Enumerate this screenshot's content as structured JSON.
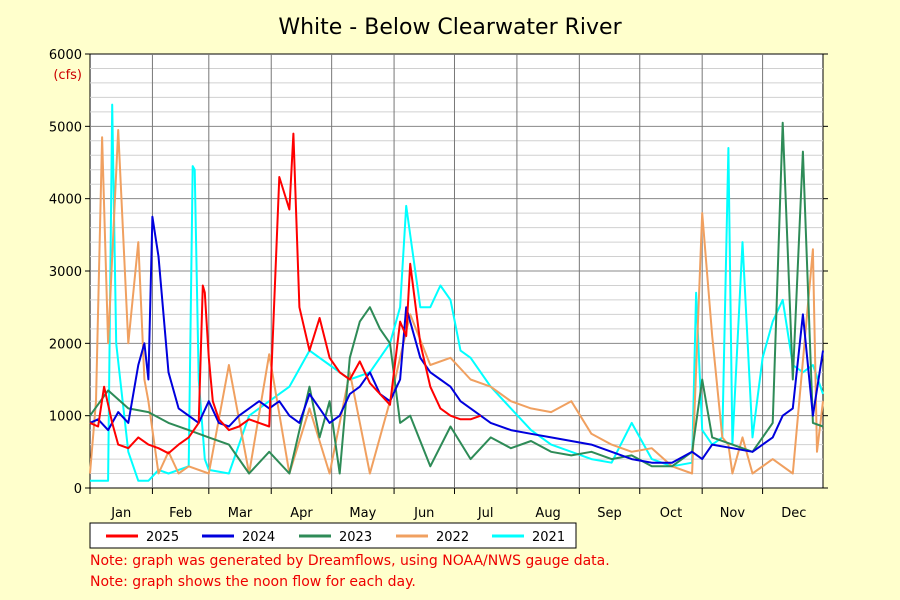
{
  "chart_data": {
    "type": "line",
    "title": "White - Below Clearwater River",
    "ylabel": "(cfs)",
    "xlabel": "",
    "ylim": [
      0,
      6000
    ],
    "yticks": [
      0,
      1000,
      2000,
      3000,
      4000,
      5000,
      6000
    ],
    "x_unit": "day of year",
    "xlim": [
      1,
      365
    ],
    "month_ticks": [
      "Jan",
      "Feb",
      "Mar",
      "Apr",
      "May",
      "Jun",
      "Jul",
      "Aug",
      "Sep",
      "Oct",
      "Nov",
      "Dec"
    ],
    "grid": true,
    "legend_position": "bottom",
    "series": [
      {
        "name": "2025",
        "color": "#ff0000",
        "x": [
          1,
          5,
          8,
          12,
          15,
          20,
          25,
          30,
          35,
          40,
          45,
          50,
          55,
          57,
          58,
          60,
          62,
          65,
          70,
          75,
          80,
          85,
          90,
          95,
          100,
          102,
          105,
          110,
          115,
          120,
          125,
          130,
          135,
          140,
          145,
          150,
          155,
          158,
          160,
          165,
          170,
          175,
          180,
          185,
          190,
          195
        ],
        "y": [
          900,
          850,
          1400,
          900,
          600,
          550,
          700,
          600,
          550,
          480,
          600,
          700,
          900,
          2800,
          2700,
          1800,
          1200,
          950,
          800,
          850,
          950,
          900,
          850,
          4300,
          3850,
          4900,
          2500,
          1900,
          2350,
          1800,
          1600,
          1500,
          1750,
          1450,
          1300,
          1150,
          2300,
          2100,
          3100,
          2000,
          1400,
          1100,
          1000,
          950,
          950,
          1000
        ]
      },
      {
        "name": "2024",
        "color": "#0000dd",
        "x": [
          1,
          5,
          10,
          15,
          20,
          25,
          28,
          30,
          32,
          35,
          40,
          45,
          50,
          55,
          60,
          65,
          70,
          75,
          80,
          85,
          90,
          95,
          100,
          105,
          110,
          115,
          120,
          125,
          130,
          135,
          140,
          145,
          150,
          155,
          158,
          160,
          165,
          170,
          175,
          180,
          185,
          190,
          195,
          200,
          210,
          220,
          230,
          240,
          250,
          260,
          270,
          280,
          290,
          300,
          305,
          310,
          320,
          330,
          340,
          345,
          350,
          355,
          360,
          365
        ],
        "y": [
          900,
          950,
          800,
          1050,
          900,
          1700,
          2000,
          1500,
          3750,
          3200,
          1600,
          1100,
          1000,
          900,
          1200,
          900,
          850,
          1000,
          1100,
          1200,
          1100,
          1200,
          1000,
          900,
          1300,
          1100,
          900,
          1000,
          1300,
          1400,
          1600,
          1300,
          1200,
          1500,
          2500,
          2300,
          1800,
          1600,
          1500,
          1400,
          1200,
          1100,
          1000,
          900,
          800,
          750,
          700,
          650,
          600,
          500,
          400,
          350,
          350,
          500,
          400,
          600,
          550,
          500,
          700,
          1000,
          1100,
          2400,
          1000,
          1900
        ]
      },
      {
        "name": "2023",
        "color": "#2e8b57",
        "x": [
          1,
          10,
          20,
          30,
          40,
          50,
          60,
          70,
          80,
          90,
          100,
          110,
          115,
          120,
          125,
          130,
          135,
          140,
          145,
          150,
          155,
          160,
          170,
          180,
          190,
          200,
          210,
          220,
          230,
          240,
          250,
          260,
          270,
          280,
          290,
          300,
          305,
          310,
          320,
          330,
          340,
          345,
          350,
          355,
          360,
          365
        ],
        "y": [
          1000,
          1350,
          1100,
          1050,
          900,
          800,
          700,
          600,
          200,
          500,
          200,
          1400,
          700,
          1200,
          200,
          1800,
          2300,
          2500,
          2200,
          2000,
          900,
          1000,
          300,
          850,
          400,
          700,
          550,
          650,
          500,
          450,
          500,
          400,
          450,
          300,
          300,
          500,
          1500,
          700,
          600,
          500,
          900,
          5050,
          1500,
          4650,
          900,
          850
        ]
      },
      {
        "name": "2022",
        "color": "#f0a060",
        "x": [
          1,
          4,
          7,
          10,
          15,
          20,
          25,
          28,
          30,
          35,
          40,
          45,
          50,
          60,
          70,
          80,
          90,
          100,
          110,
          120,
          130,
          140,
          150,
          160,
          170,
          180,
          190,
          200,
          210,
          220,
          230,
          240,
          250,
          260,
          270,
          280,
          290,
          300,
          305,
          310,
          315,
          318,
          320,
          325,
          330,
          340,
          350,
          360,
          362,
          365
        ],
        "y": [
          200,
          1200,
          4850,
          2000,
          4950,
          2000,
          3400,
          1500,
          1200,
          200,
          500,
          200,
          300,
          200,
          1700,
          200,
          1850,
          200,
          1100,
          200,
          1600,
          200,
          1200,
          2400,
          1700,
          1800,
          1500,
          1400,
          1200,
          1100,
          1050,
          1200,
          750,
          600,
          500,
          550,
          300,
          200,
          3800,
          2100,
          700,
          600,
          200,
          700,
          200,
          400,
          200,
          3300,
          500,
          1200
        ]
      },
      {
        "name": "2021",
        "color": "#00ffff",
        "x": [
          1,
          5,
          10,
          12,
          14,
          16,
          20,
          25,
          30,
          35,
          40,
          45,
          50,
          52,
          53,
          55,
          58,
          60,
          70,
          80,
          90,
          100,
          110,
          120,
          130,
          140,
          150,
          155,
          158,
          160,
          165,
          170,
          175,
          180,
          185,
          190,
          200,
          210,
          220,
          230,
          240,
          250,
          260,
          270,
          280,
          290,
          300,
          302,
          305,
          310,
          315,
          318,
          320,
          325,
          330,
          335,
          340,
          345,
          350,
          355,
          360,
          365
        ],
        "y": [
          100,
          100,
          100,
          5300,
          2000,
          1500,
          500,
          100,
          100,
          250,
          200,
          250,
          300,
          4450,
          4400,
          1500,
          400,
          250,
          200,
          1000,
          1200,
          1400,
          1900,
          1700,
          1500,
          1600,
          2000,
          2500,
          3900,
          3500,
          2500,
          2500,
          2800,
          2600,
          1900,
          1800,
          1400,
          1100,
          800,
          600,
          500,
          400,
          350,
          900,
          400,
          300,
          350,
          2700,
          800,
          600,
          700,
          4700,
          600,
          3400,
          700,
          1800,
          2300,
          2600,
          1700,
          1600,
          1700,
          1300
        ]
      }
    ]
  },
  "notes": [
    "Note: graph was generated by Dreamflows, using NOAA/NWS gauge data.",
    "Note: graph shows the noon flow for each day."
  ]
}
